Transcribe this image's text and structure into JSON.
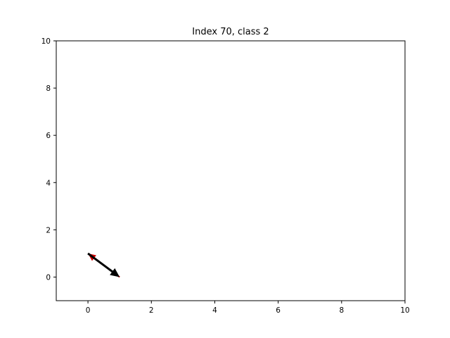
{
  "chart_data": {
    "type": "quiver",
    "title": "Index 70, class 2",
    "xlabel": "",
    "ylabel": "",
    "xlim": [
      -1,
      10
    ],
    "ylim": [
      -1,
      10
    ],
    "xticks": [
      "0",
      "2",
      "4",
      "6",
      "8",
      "10"
    ],
    "yticks": [
      "0",
      "2",
      "4",
      "6",
      "8",
      "10"
    ],
    "grid": false,
    "series": [
      {
        "color": "#d00000",
        "arrows": [
          {
            "x0": 1.0,
            "y0": 0.0,
            "x1": 0.0,
            "y1": 1.0
          }
        ]
      },
      {
        "color": "#000000",
        "arrows": [
          {
            "x0": 0.0,
            "y0": 1.0,
            "x1": 1.0,
            "y1": 0.0
          }
        ]
      }
    ]
  }
}
